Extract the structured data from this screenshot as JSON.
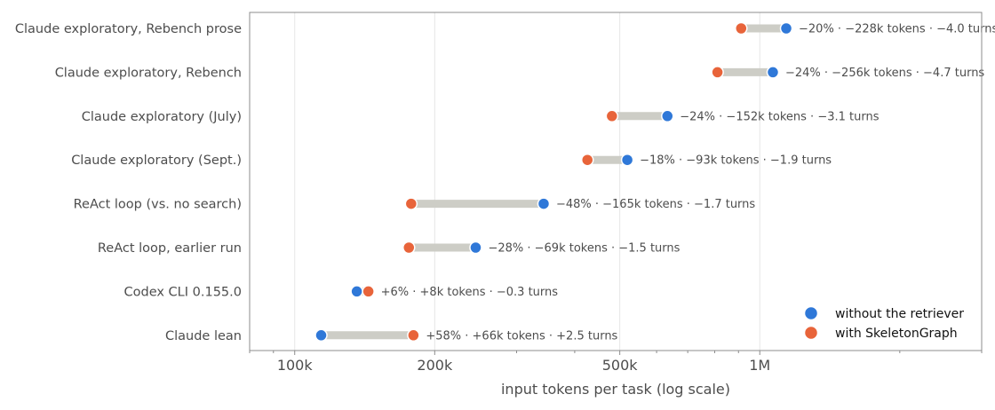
{
  "chart_data": {
    "type": "dumbbell",
    "xlabel": "input tokens per task (log scale)",
    "x_scale": "log",
    "xlim": [
      80000,
      3000000
    ],
    "x_ticks": [
      {
        "value": 100000,
        "label": "100k"
      },
      {
        "value": 200000,
        "label": "200k"
      },
      {
        "value": 500000,
        "label": "500k"
      },
      {
        "value": 1000000,
        "label": "1M"
      }
    ],
    "grid": "vertical major",
    "legend_position": "bottom-right",
    "series": [
      {
        "name": "without the retriever",
        "color": "#2f78d8"
      },
      {
        "name": "with SkeletonGraph",
        "color": "#e8643a"
      }
    ],
    "rows": [
      {
        "label": "Claude exploratory, Rebench prose",
        "without": 1140000,
        "with": 912000,
        "annotation": "−20%  ·  −228k tokens  ·  −4.0 turns"
      },
      {
        "label": "Claude exploratory, Rebench",
        "without": 1067000,
        "with": 811000,
        "annotation": "−24%  ·  −256k tokens  ·  −4.7 turns"
      },
      {
        "label": "Claude exploratory (July)",
        "without": 633000,
        "with": 481000,
        "annotation": "−24%  ·  −152k tokens  ·  −3.1 turns"
      },
      {
        "label": "Claude exploratory (Sept.)",
        "without": 519000,
        "with": 426000,
        "annotation": "−18%  ·  −93k tokens  ·  −1.9 turns"
      },
      {
        "label": "ReAct loop (vs. no search)",
        "without": 343000,
        "with": 178000,
        "annotation": "−48%  ·  −165k tokens  ·  −1.7 turns"
      },
      {
        "label": "ReAct loop, earlier run",
        "without": 245000,
        "with": 176000,
        "annotation": "−28%  ·  −69k tokens  ·  −1.5 turns"
      },
      {
        "label": "Codex CLI 0.155.0",
        "without": 136000,
        "with": 144000,
        "annotation": "+6%  ·  +8k tokens  ·  −0.3 turns"
      },
      {
        "label": "Claude lean",
        "without": 114000,
        "with": 180000,
        "annotation": "+58%  ·  +66k tokens  ·  +2.5 turns"
      }
    ],
    "connector_color": "#cdcdc6",
    "axis_color": "#8c8c8c",
    "text_color": "#4d4d4d"
  }
}
